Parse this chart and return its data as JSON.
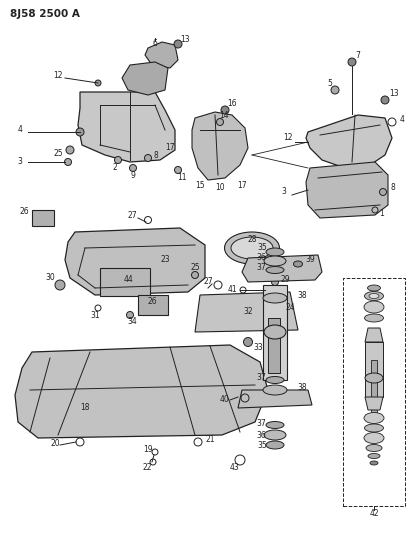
{
  "title": "8J58 2500 A",
  "bg_color": "#ffffff",
  "line_color": "#222222",
  "fig_width": 4.11,
  "fig_height": 5.33,
  "dpi": 100
}
